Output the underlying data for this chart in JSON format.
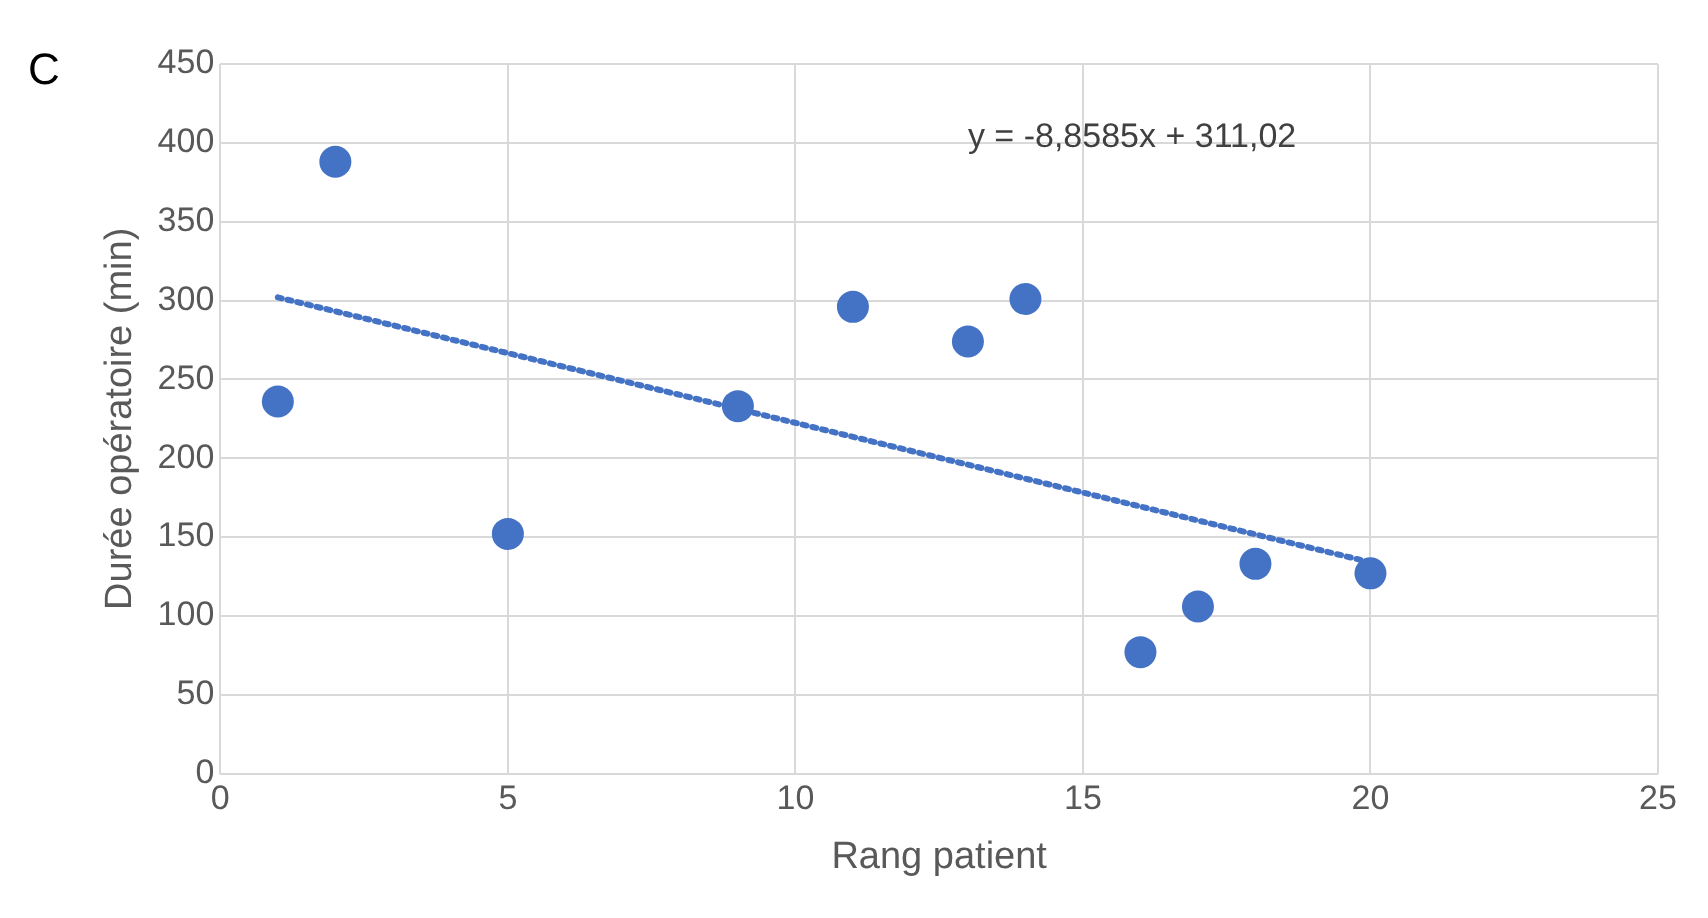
{
  "chart_data": {
    "type": "scatter",
    "xlabel": "Rang patient",
    "ylabel": "Durée opératoire (min)",
    "annotations": [
      "C",
      "y = -8,8585x + 311,02"
    ],
    "series": [
      {
        "type": "scatter",
        "color": "#4472c4",
        "marker": "circle",
        "x": [
          1,
          2,
          5,
          9,
          11,
          13,
          14,
          16,
          17,
          18,
          20
        ],
        "values": [
          236,
          388,
          152,
          233,
          296,
          274,
          301,
          77,
          106,
          133,
          127
        ]
      },
      {
        "type": "line",
        "color": "#4472c4",
        "marker": "none",
        "line_style": "dotted",
        "x": [
          1,
          20
        ],
        "values": [
          302,
          134
        ]
      }
    ],
    "xlim": [
      0,
      25
    ],
    "xticks": [
      0,
      5,
      10,
      15,
      20,
      25
    ],
    "ylim": [
      0,
      450
    ],
    "yticks": [
      0,
      50,
      100,
      150,
      200,
      250,
      300,
      350,
      400,
      450
    ],
    "grid": true,
    "legend": false
  }
}
